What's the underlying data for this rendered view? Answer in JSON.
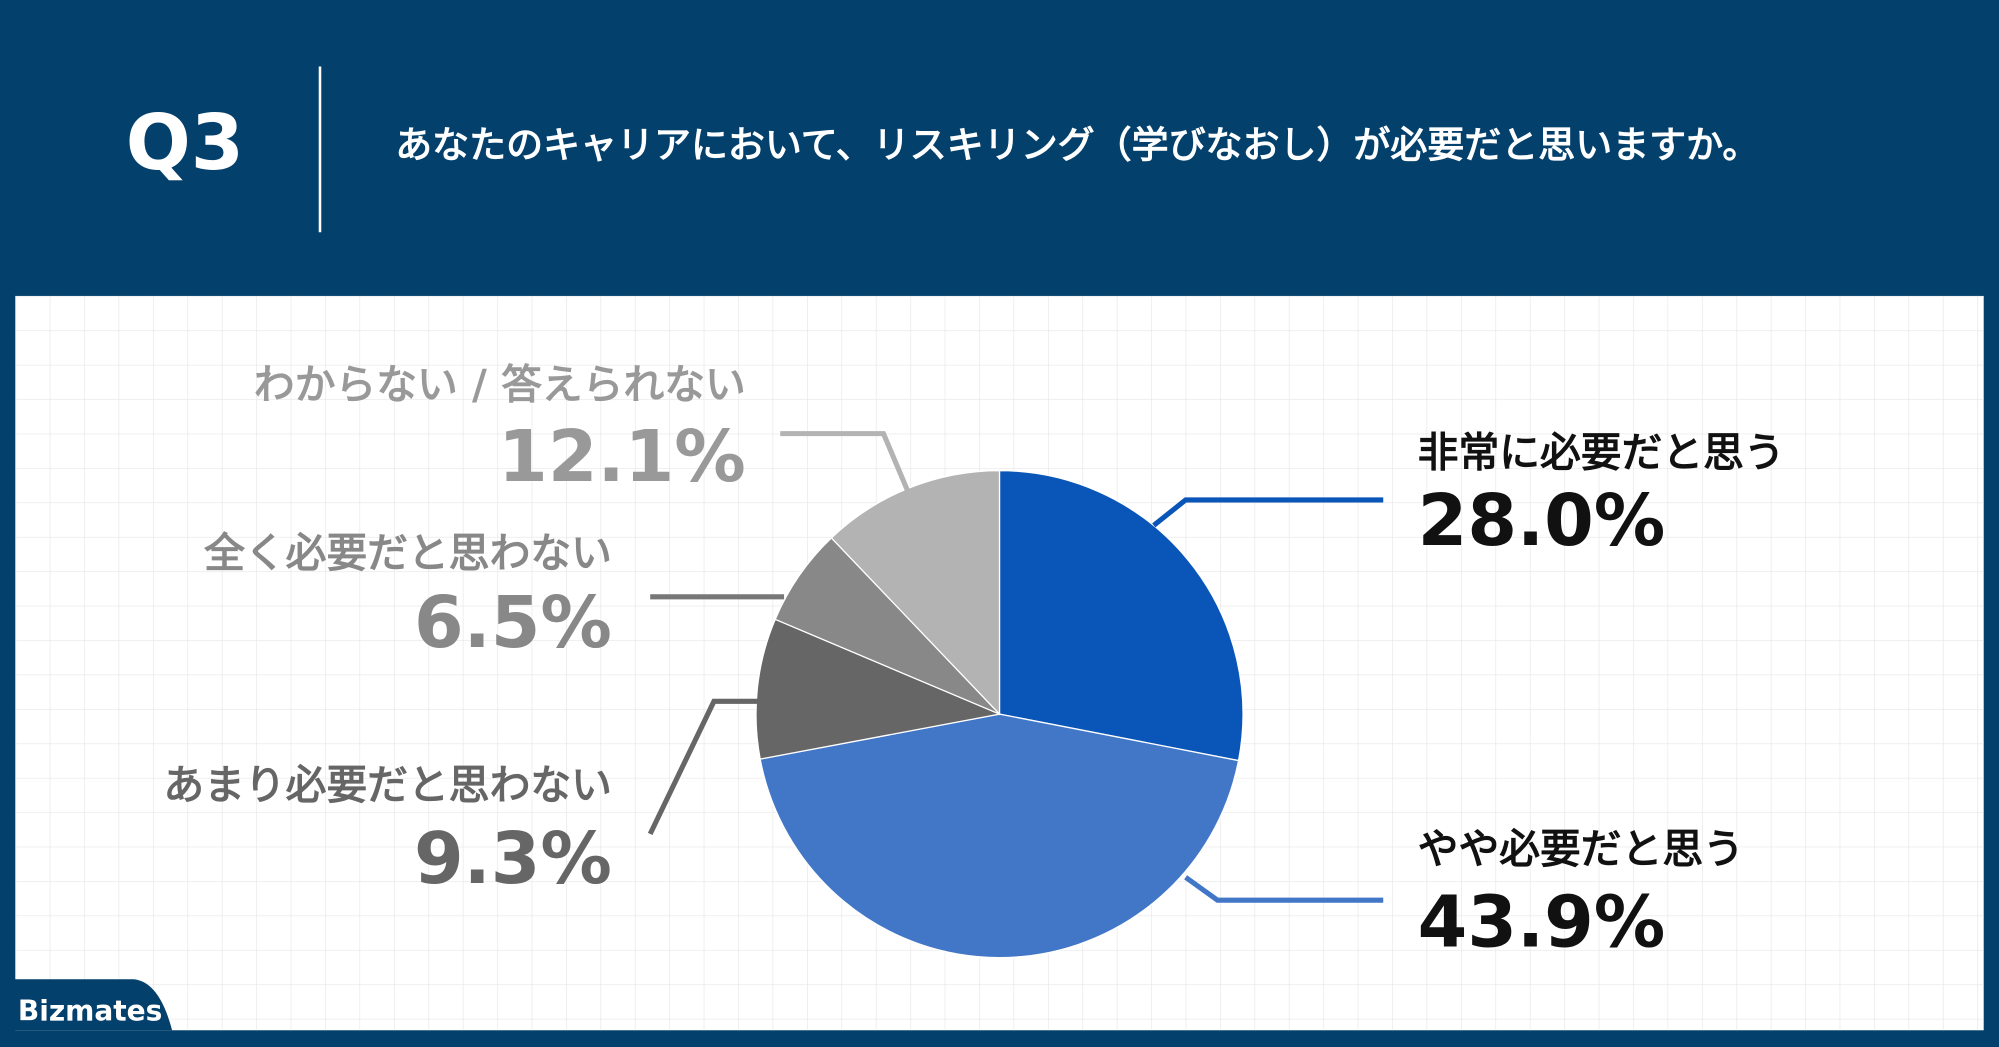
{
  "header": {
    "number": "Q3",
    "question": "あなたのキャリアにおいて、リスキリング（学びなおし）が必要だと思いますか。"
  },
  "chart_data": {
    "type": "pie",
    "categories": [
      "非常に必要だと思う",
      "やや必要だと思う",
      "あまり必要だと思わない",
      "全く必要だと思わない",
      "わからない / 答えられない"
    ],
    "values": [
      28.0,
      43.9,
      9.3,
      6.5,
      12.1
    ],
    "value_labels": [
      "28.0%",
      "43.9%",
      "9.3%",
      "6.5%",
      "12.1%"
    ],
    "colors": [
      "#0a55b8",
      "#4177c6",
      "#666666",
      "#888888",
      "#b3b3b3"
    ]
  },
  "footer": {
    "logo": "Bizmates"
  }
}
